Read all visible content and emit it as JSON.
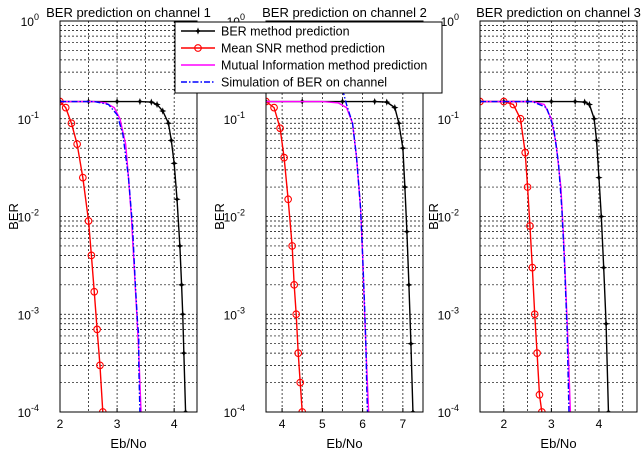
{
  "legend": {
    "entries": [
      {
        "name": "BER method prediction",
        "color": "#000000",
        "marker": "star",
        "dash": ""
      },
      {
        "name": "Mean SNR method prediction",
        "color": "#ff0000",
        "marker": "circle",
        "dash": ""
      },
      {
        "name": "Mutual Information method prediction",
        "color": "#ff00ff",
        "marker": "none",
        "dash": ""
      },
      {
        "name": "Simulation of BER on channel",
        "color": "#0000ff",
        "marker": "none",
        "dash": "6,2,1.5,2"
      }
    ]
  },
  "chart_data": [
    {
      "type": "line",
      "title": "BER prediction on channel 1",
      "xlabel": "Eb/No",
      "ylabel": "BER",
      "xlim": [
        2,
        4.4
      ],
      "ylim": [
        0.0001,
        1
      ],
      "yscale": "log",
      "xticks": [
        2,
        3,
        4
      ],
      "yticks": [
        {
          "base": "10",
          "exp": "-4"
        },
        {
          "base": "10",
          "exp": "-3"
        },
        {
          "base": "10",
          "exp": "-2"
        },
        {
          "base": "10",
          "exp": "-1"
        },
        {
          "base": "10",
          "exp": "0"
        }
      ],
      "grid": true,
      "series": [
        {
          "name": "BER method prediction",
          "x": [
            2.0,
            2.5,
            3.0,
            3.4,
            3.6,
            3.7,
            3.8,
            3.9,
            3.95,
            4.0,
            4.05,
            4.1,
            4.13,
            4.15,
            4.17,
            4.2
          ],
          "y": [
            0.15,
            0.15,
            0.15,
            0.15,
            0.148,
            0.14,
            0.12,
            0.09,
            0.06,
            0.035,
            0.015,
            0.005,
            0.002,
            0.001,
            0.0004,
            0.0001
          ]
        },
        {
          "name": "Mean SNR method prediction",
          "x": [
            2.0,
            2.1,
            2.2,
            2.3,
            2.4,
            2.5,
            2.55,
            2.6,
            2.65,
            2.7,
            2.75
          ],
          "y": [
            0.15,
            0.13,
            0.09,
            0.055,
            0.025,
            0.009,
            0.004,
            0.0017,
            0.0007,
            0.0003,
            0.0001
          ]
        },
        {
          "name": "Mutual Information method prediction",
          "x": [
            2.0,
            2.6,
            2.8,
            2.95,
            3.05,
            3.15,
            3.2,
            3.25,
            3.3,
            3.35,
            3.38,
            3.42
          ],
          "y": [
            0.15,
            0.15,
            0.145,
            0.13,
            0.1,
            0.055,
            0.025,
            0.01,
            0.003,
            0.0009,
            0.0004,
            0.0001
          ]
        },
        {
          "name": "Simulation of BER on channel",
          "x": [
            2.0,
            2.6,
            2.85,
            3.0,
            3.1,
            3.2,
            3.27,
            3.32,
            3.36,
            3.38,
            3.38,
            3.4
          ],
          "y": [
            0.15,
            0.15,
            0.14,
            0.11,
            0.07,
            0.025,
            0.008,
            0.002,
            0.0008,
            0.0006,
            0.0003,
            0.0001
          ]
        }
      ]
    },
    {
      "type": "line",
      "title": "BER prediction on channel 2",
      "xlabel": "Eb/No",
      "ylabel": "BER",
      "xlim": [
        3.6,
        7.5
      ],
      "ylim": [
        0.0001,
        1
      ],
      "yscale": "log",
      "xticks": [
        4,
        5,
        6,
        7
      ],
      "yticks": [
        {
          "base": "10",
          "exp": "-4"
        },
        {
          "base": "10",
          "exp": "-3"
        },
        {
          "base": "10",
          "exp": "-2"
        },
        {
          "base": "10",
          "exp": "-1"
        },
        {
          "base": "10",
          "exp": "0"
        }
      ],
      "grid": true,
      "series": [
        {
          "name": "BER method prediction",
          "x": [
            3.6,
            4.5,
            5.5,
            6.3,
            6.6,
            6.8,
            6.9,
            7.0,
            7.05,
            7.1,
            7.15,
            7.2,
            7.25
          ],
          "y": [
            0.15,
            0.15,
            0.15,
            0.15,
            0.148,
            0.13,
            0.09,
            0.05,
            0.02,
            0.007,
            0.002,
            0.0005,
            0.0001
          ]
        },
        {
          "name": "Mean SNR method prediction",
          "x": [
            3.6,
            3.8,
            3.95,
            4.05,
            4.15,
            4.25,
            4.3,
            4.35,
            4.4,
            4.45,
            4.5
          ],
          "y": [
            0.15,
            0.13,
            0.08,
            0.04,
            0.015,
            0.005,
            0.002,
            0.001,
            0.0004,
            0.0002,
            0.0001
          ]
        },
        {
          "name": "Mutual Information method prediction",
          "x": [
            3.6,
            5.0,
            5.4,
            5.6,
            5.75,
            5.85,
            5.95,
            6.0,
            6.05,
            6.1,
            6.15
          ],
          "y": [
            0.15,
            0.15,
            0.145,
            0.13,
            0.09,
            0.04,
            0.012,
            0.004,
            0.001,
            0.0003,
            0.0001
          ]
        },
        {
          "name": "Simulation of BER on channel",
          "x": [
            5.5,
            5.6,
            5.75,
            5.85,
            5.95,
            6.0,
            6.05,
            6.08,
            6.1,
            6.12
          ],
          "y": [
            0.2,
            0.14,
            0.09,
            0.04,
            0.012,
            0.004,
            0.0012,
            0.0005,
            0.0002,
            0.0001
          ]
        }
      ]
    },
    {
      "type": "line",
      "title": "BER prediction on channel 3",
      "xlabel": "Eb/No",
      "ylabel": "BER",
      "xlim": [
        1.5,
        4.8
      ],
      "ylim": [
        0.0001,
        1
      ],
      "yscale": "log",
      "xticks": [
        2,
        3,
        4
      ],
      "yticks": [
        {
          "base": "10",
          "exp": "-4"
        },
        {
          "base": "10",
          "exp": "-3"
        },
        {
          "base": "10",
          "exp": "-2"
        },
        {
          "base": "10",
          "exp": "-1"
        },
        {
          "base": "10",
          "exp": "0"
        }
      ],
      "grid": true,
      "series": [
        {
          "name": "BER method prediction",
          "x": [
            1.5,
            2.0,
            2.5,
            3.0,
            3.5,
            3.7,
            3.8,
            3.9,
            3.95,
            4.0,
            4.05,
            4.1,
            4.15,
            4.2
          ],
          "y": [
            0.15,
            0.15,
            0.15,
            0.15,
            0.15,
            0.148,
            0.14,
            0.1,
            0.06,
            0.025,
            0.01,
            0.003,
            0.0008,
            0.0001
          ]
        },
        {
          "name": "Mean SNR method prediction",
          "x": [
            1.5,
            2.0,
            2.2,
            2.35,
            2.45,
            2.5,
            2.55,
            2.6,
            2.65,
            2.7,
            2.75,
            2.8
          ],
          "y": [
            0.15,
            0.15,
            0.14,
            0.1,
            0.045,
            0.02,
            0.008,
            0.003,
            0.001,
            0.0004,
            0.00015,
            0.0001
          ]
        },
        {
          "name": "Mutual Information method prediction",
          "x": [
            1.5,
            2.6,
            2.85,
            3.0,
            3.1,
            3.2,
            3.25,
            3.3,
            3.35,
            3.4
          ],
          "y": [
            0.15,
            0.15,
            0.14,
            0.1,
            0.055,
            0.02,
            0.007,
            0.002,
            0.0005,
            0.0001
          ]
        },
        {
          "name": "Simulation of BER on channel",
          "x": [
            1.5,
            2.6,
            2.9,
            3.05,
            3.15,
            3.22,
            3.28,
            3.33,
            3.37
          ],
          "y": [
            0.15,
            0.15,
            0.13,
            0.08,
            0.035,
            0.012,
            0.003,
            0.0007,
            0.0001
          ]
        }
      ]
    }
  ]
}
